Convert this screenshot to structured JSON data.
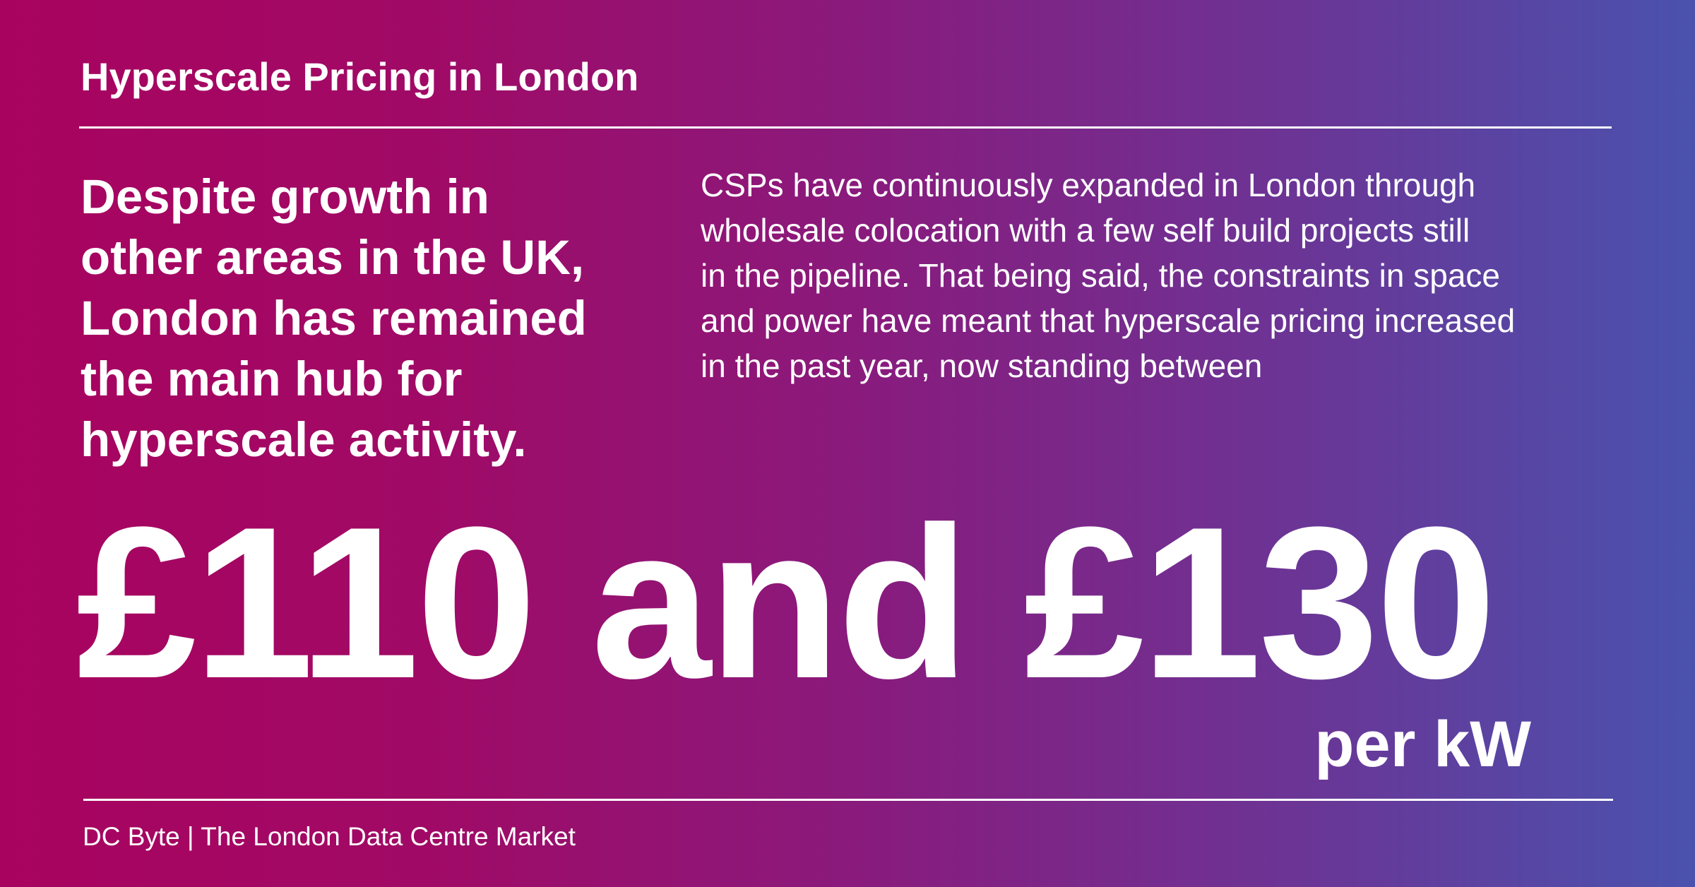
{
  "colors": {
    "gradient_left": "#a8035f",
    "gradient_right": "#4a52ae",
    "text": "#ffffff"
  },
  "title": "Hyperscale Pricing in London",
  "headline_lines": [
    "Despite growth in",
    "other areas in the UK,",
    "London has remained",
    "the main hub for",
    "hyperscale activity."
  ],
  "paragraph_lines": [
    "CSPs have continuously expanded in London through",
    "wholesale colocation with a few self build projects still",
    "in the pipeline. That being said, the constraints in space",
    "and power have meant that hyperscale pricing increased",
    "in the past year, now standing between"
  ],
  "price": {
    "range": "£110 and £130",
    "unit": "per kW"
  },
  "footer": "DC Byte | The London Data Centre Market"
}
